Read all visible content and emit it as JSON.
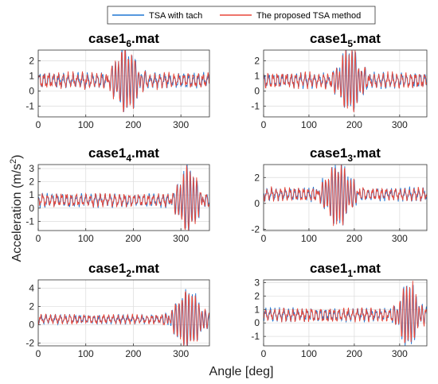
{
  "legend": {
    "placement": "top-center",
    "items": [
      {
        "label": "TSA with tach",
        "color": "#1f77d4"
      },
      {
        "label": "The proposed TSA method",
        "color": "#e8473a"
      }
    ]
  },
  "figure": {
    "ylabel": "Acceleration (m/s",
    "ylabel_sup": "2",
    "ylabel_tail": ")",
    "xlabel": "Angle [deg]"
  },
  "chart_data": [
    {
      "type": "line",
      "title": "case1",
      "title_sub": "6",
      "title_tail": ".mat",
      "xlim": [
        0,
        360
      ],
      "ylim": [
        -1.7,
        2.7
      ],
      "xticks": [
        0,
        100,
        200,
        300
      ],
      "yticks": [
        -1,
        0,
        1,
        2
      ],
      "grid": true,
      "burst_center": 185,
      "burst_halfwidth": 35,
      "burst_amplitude": 2.0,
      "base_level": 0.7,
      "series": [
        {
          "name": "TSA with tach"
        },
        {
          "name": "The proposed TSA method"
        }
      ]
    },
    {
      "type": "line",
      "title": "case1",
      "title_sub": "5",
      "title_tail": ".mat",
      "xlim": [
        0,
        360
      ],
      "ylim": [
        -1.7,
        2.7
      ],
      "xticks": [
        0,
        100,
        200,
        300
      ],
      "yticks": [
        -1,
        0,
        1,
        2
      ],
      "grid": true,
      "burst_center": 190,
      "burst_halfwidth": 35,
      "burst_amplitude": 2.0,
      "base_level": 0.7,
      "series": [
        {
          "name": "TSA with tach"
        },
        {
          "name": "The proposed TSA method"
        }
      ]
    },
    {
      "type": "line",
      "title": "case1",
      "title_sub": "4",
      "title_tail": ".mat",
      "xlim": [
        0,
        360
      ],
      "ylim": [
        -1.7,
        3.3
      ],
      "xticks": [
        0,
        100,
        200,
        300
      ],
      "yticks": [
        -1,
        0,
        1,
        2,
        3
      ],
      "grid": true,
      "burst_center": 315,
      "burst_halfwidth": 30,
      "burst_amplitude": 2.4,
      "base_level": 0.6,
      "series": [
        {
          "name": "TSA with tach"
        },
        {
          "name": "The proposed TSA method"
        }
      ]
    },
    {
      "type": "line",
      "title": "case1",
      "title_sub": "3",
      "title_tail": ".mat",
      "xlim": [
        0,
        360
      ],
      "ylim": [
        -2.1,
        3.0
      ],
      "xticks": [
        0,
        100,
        200,
        300
      ],
      "yticks": [
        -2,
        0,
        2
      ],
      "grid": true,
      "burst_center": 165,
      "burst_halfwidth": 40,
      "burst_amplitude": 2.3,
      "base_level": 0.7,
      "series": [
        {
          "name": "TSA with tach"
        },
        {
          "name": "The proposed TSA method"
        }
      ]
    },
    {
      "type": "line",
      "title": "case1",
      "title_sub": "2",
      "title_tail": ".mat",
      "xlim": [
        0,
        360
      ],
      "ylim": [
        -2.3,
        4.9
      ],
      "xticks": [
        0,
        100,
        200,
        300
      ],
      "yticks": [
        -2,
        0,
        2,
        4
      ],
      "grid": true,
      "burst_center": 315,
      "burst_halfwidth": 40,
      "burst_amplitude": 3.0,
      "base_level": 0.6,
      "series": [
        {
          "name": "TSA with tach"
        },
        {
          "name": "The proposed TSA method"
        }
      ]
    },
    {
      "type": "line",
      "title": "case1",
      "title_sub": "1",
      "title_tail": ".mat",
      "xlim": [
        0,
        360
      ],
      "ylim": [
        -1.7,
        3.2
      ],
      "xticks": [
        0,
        100,
        200,
        300
      ],
      "yticks": [
        -1,
        0,
        1,
        2,
        3
      ],
      "grid": true,
      "burst_center": 320,
      "burst_halfwidth": 30,
      "burst_amplitude": 2.3,
      "base_level": 0.6,
      "series": [
        {
          "name": "TSA with tach"
        },
        {
          "name": "The proposed TSA method"
        }
      ]
    }
  ]
}
